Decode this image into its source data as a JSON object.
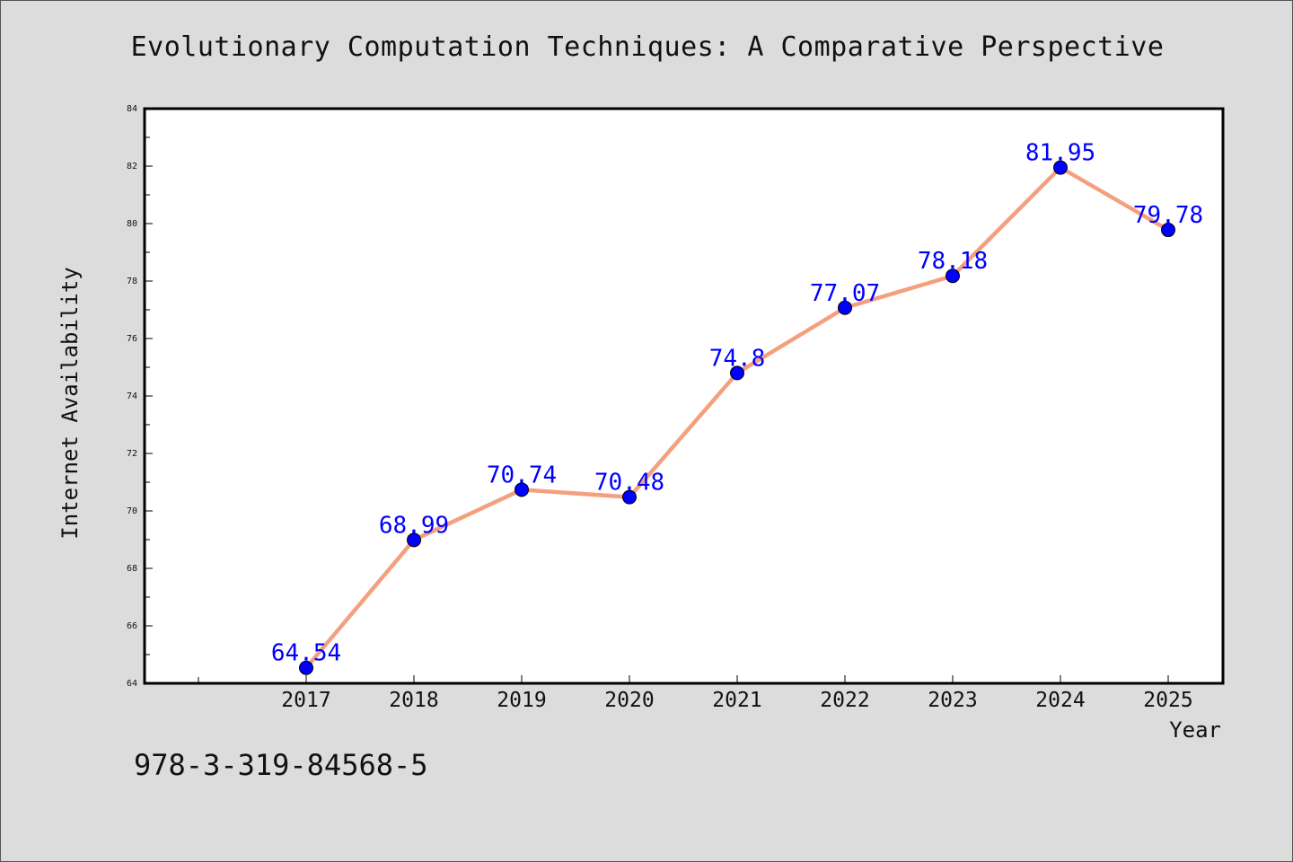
{
  "header": {
    "title": "Evolutionary Computation Techniques: A Comparative Perspective"
  },
  "footer": {
    "code": "978-3-319-84568-5"
  },
  "colors": {
    "line": "#f4a07e",
    "marker": "#0000ff",
    "label": "#0000ff",
    "background": "#dcdcdc",
    "plot_area": "#ffffff"
  },
  "chart_data": {
    "type": "line",
    "title": "Evolutionary Computation Techniques: A Comparative Perspective",
    "xlabel": "Year",
    "ylabel": "Internet Availability",
    "x": [
      "2017",
      "2018",
      "2019",
      "2020",
      "2021",
      "2022",
      "2023",
      "2024",
      "2025"
    ],
    "series": [
      {
        "values": [
          64.54,
          68.99,
          70.74,
          70.48,
          74.8,
          77.07,
          78.18,
          81.95,
          79.78
        ],
        "labels": [
          "64.54",
          "68.99",
          "70.74",
          "70.48",
          "74.8",
          "77.07",
          "78.18",
          "81.95",
          "79.78"
        ]
      }
    ],
    "ylim": [
      64,
      84
    ],
    "yticks": [
      "64",
      "66",
      "68",
      "70",
      "72",
      "74",
      "76",
      "78",
      "80",
      "82",
      "84"
    ],
    "grid": false,
    "legend": "none"
  }
}
